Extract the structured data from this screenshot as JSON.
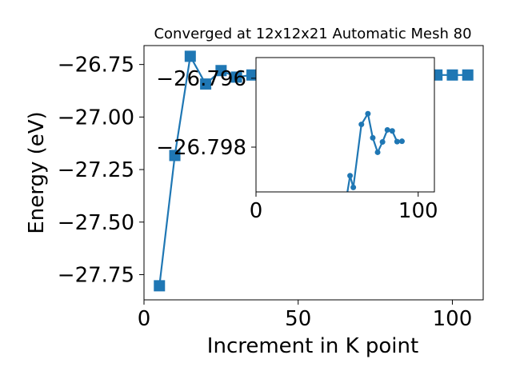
{
  "chart_data": [
    {
      "type": "line",
      "title": "Converged at 12x12x21 Automatic Mesh 80",
      "xlabel": "Increment in K point",
      "ylabel": "Energy (eV)",
      "xlim": [
        0,
        110
      ],
      "ylim": [
        -27.87,
        -26.66
      ],
      "x_ticks": [
        0,
        50,
        100
      ],
      "x_tick_labels": [
        "0",
        "50",
        "100"
      ],
      "y_ticks": [
        -26.75,
        -27.0,
        -27.25,
        -27.5,
        -27.75
      ],
      "y_tick_labels": [
        "−26.75",
        "−27.00",
        "−27.25",
        "−27.50",
        "−27.75"
      ],
      "grid": false,
      "legend": "none",
      "color": "#1f77b4",
      "marker": "square",
      "series": [
        {
          "x": [
            5,
            10,
            15,
            20,
            25,
            30,
            35,
            40,
            45,
            50,
            55,
            60,
            65,
            70,
            75,
            80,
            85,
            90,
            95,
            100,
            105
          ],
          "y": [
            -27.803,
            -27.183,
            -26.711,
            -26.843,
            -26.779,
            -26.81,
            -26.8,
            -26.802,
            -26.8,
            -26.8,
            -26.8,
            -26.8,
            -26.8,
            -26.8,
            -26.8,
            -26.8,
            -26.8,
            -26.8,
            -26.8,
            -26.8,
            -26.8
          ]
        }
      ]
    },
    {
      "type": "line",
      "title": "",
      "xlabel": "",
      "ylabel": "",
      "xlim": [
        0,
        110
      ],
      "ylim": [
        -26.7993,
        -26.7954
      ],
      "x_ticks": [
        0,
        100
      ],
      "x_tick_labels": [
        "0",
        "100"
      ],
      "y_ticks": [
        -26.798,
        -26.796
      ],
      "y_tick_labels": [
        "−26.798",
        "−26.796"
      ],
      "grid": false,
      "legend": "none",
      "color": "#1f77b4",
      "marker": "circle",
      "series": [
        {
          "x": [
            55,
            58,
            60,
            65,
            69,
            72,
            75,
            78,
            81,
            84,
            87,
            90
          ],
          "y": [
            -26.7997,
            -26.79883,
            -26.79917,
            -26.79734,
            -26.79703,
            -26.79773,
            -26.79815,
            -26.79785,
            -26.7975,
            -26.79753,
            -26.79784,
            -26.79783
          ]
        }
      ]
    }
  ]
}
